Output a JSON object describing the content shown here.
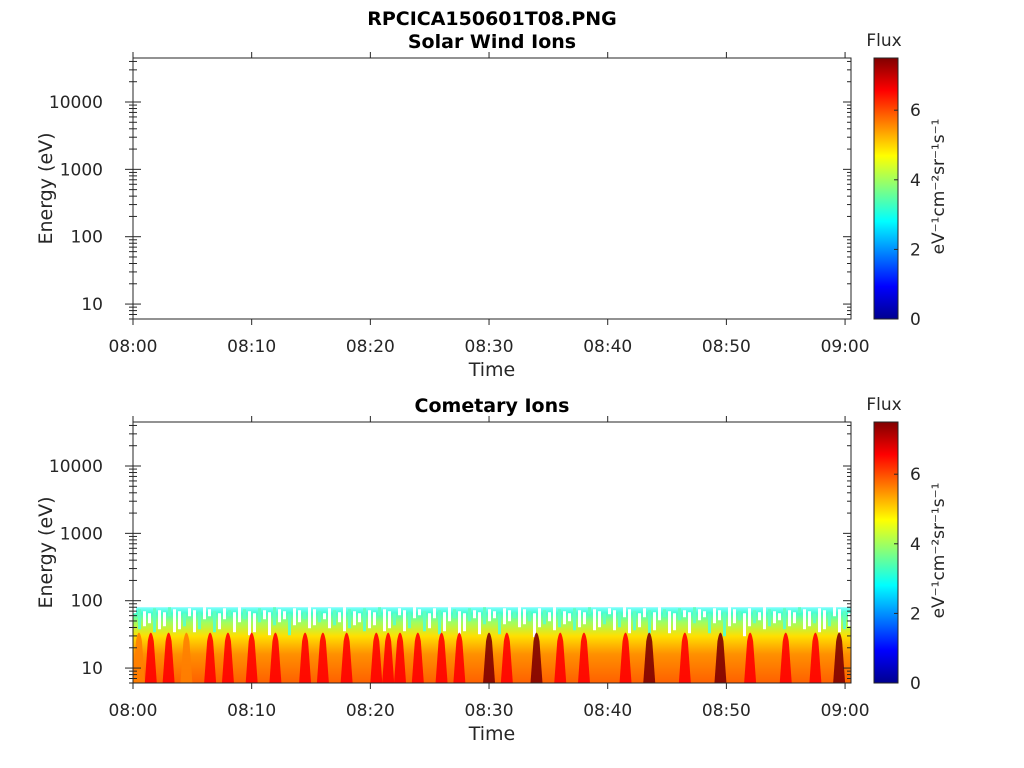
{
  "figure_title": "RPCICA150601T08.PNG",
  "colormap": [
    "#00008f",
    "#0000ff",
    "#0080ff",
    "#00ffff",
    "#80ff80",
    "#ffff00",
    "#ff8000",
    "#ff0000",
    "#800000"
  ],
  "chart_data": [
    {
      "type": "heatmap",
      "title": "Solar Wind Ions",
      "xlabel": "Time",
      "ylabel": "Energy (eV)",
      "xticks": [
        "08:00",
        "08:10",
        "08:20",
        "08:30",
        "08:40",
        "08:50",
        "09:00"
      ],
      "xlim_minutes": [
        0,
        60.5
      ],
      "yticks": [
        "10",
        "100",
        "1000",
        "10000"
      ],
      "ylim": [
        6,
        45000
      ],
      "yscale": "log",
      "colorbar": {
        "title": "Flux",
        "label": "eV⁻¹cm⁻²sr⁻¹s⁻¹",
        "ticks": [
          "0",
          "2",
          "4",
          "6"
        ],
        "range": [
          0,
          7.5
        ]
      },
      "grid": false,
      "has_data": false
    },
    {
      "type": "heatmap",
      "title": "Cometary Ions",
      "xlabel": "Time",
      "ylabel": "Energy (eV)",
      "xticks": [
        "08:00",
        "08:10",
        "08:20",
        "08:30",
        "08:40",
        "08:50",
        "09:00"
      ],
      "xlim_minutes": [
        0,
        60.5
      ],
      "yticks": [
        "10",
        "100",
        "1000",
        "10000"
      ],
      "ylim": [
        6,
        45000
      ],
      "yscale": "log",
      "colorbar": {
        "title": "Flux",
        "label": "eV⁻¹cm⁻²sr⁻¹s⁻¹",
        "ticks": [
          "0",
          "2",
          "4",
          "6"
        ],
        "range": [
          0,
          7.5
        ]
      },
      "grid": false,
      "has_data": true,
      "energy_max_eV": 80,
      "flux_peaks": [
        {
          "t": 0.5,
          "flux": 5.6
        },
        {
          "t": 1.5,
          "flux": 6.1
        },
        {
          "t": 3,
          "flux": 6.4
        },
        {
          "t": 4.5,
          "flux": 6.0
        },
        {
          "t": 6.5,
          "flux": 6.8
        },
        {
          "t": 8,
          "flux": 6.2
        },
        {
          "t": 10,
          "flux": 6.5
        },
        {
          "t": 12,
          "flux": 6.4
        },
        {
          "t": 14.5,
          "flux": 6.8
        },
        {
          "t": 16,
          "flux": 6.3
        },
        {
          "t": 18,
          "flux": 6.1
        },
        {
          "t": 20.5,
          "flux": 6.3
        },
        {
          "t": 21.5,
          "flux": 7.0
        },
        {
          "t": 22.5,
          "flux": 6.9
        },
        {
          "t": 24,
          "flux": 6.6
        },
        {
          "t": 26,
          "flux": 6.8
        },
        {
          "t": 27.5,
          "flux": 6.5
        },
        {
          "t": 30,
          "flux": 7.2
        },
        {
          "t": 31.5,
          "flux": 6.9
        },
        {
          "t": 34,
          "flux": 7.4
        },
        {
          "t": 36,
          "flux": 6.6
        },
        {
          "t": 38,
          "flux": 6.9
        },
        {
          "t": 41.5,
          "flux": 7.0
        },
        {
          "t": 43.5,
          "flux": 7.2
        },
        {
          "t": 46.5,
          "flux": 7.0
        },
        {
          "t": 49.5,
          "flux": 7.1
        },
        {
          "t": 52,
          "flux": 6.9
        },
        {
          "t": 55,
          "flux": 7.0
        },
        {
          "t": 57.5,
          "flux": 6.9
        },
        {
          "t": 59.5,
          "flux": 7.1
        }
      ]
    }
  ]
}
